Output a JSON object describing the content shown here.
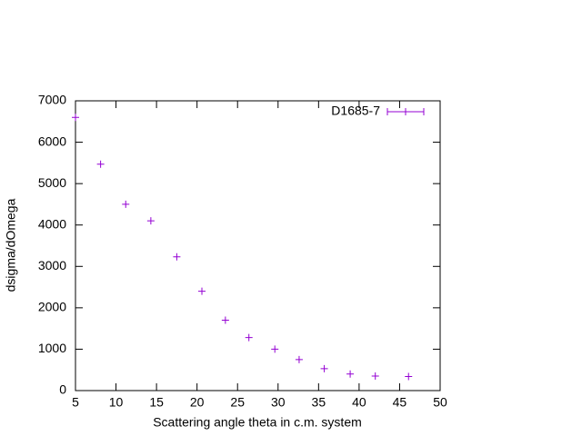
{
  "chart_data": {
    "type": "scatter",
    "xlabel": "Scattering angle theta in c.m. system",
    "ylabel": "dsigma/dOmega",
    "series": [
      {
        "name": "D1685-7",
        "color": "#9400d3",
        "x": [
          5,
          8.1,
          11.2,
          14.3,
          17.5,
          20.6,
          23.5,
          26.4,
          29.6,
          32.6,
          35.7,
          38.9,
          42.0,
          46.1
        ],
        "values": [
          6600,
          5470,
          4500,
          4100,
          3230,
          2400,
          1700,
          1280,
          1000,
          750,
          530,
          400,
          350,
          340
        ]
      }
    ],
    "xlim": [
      5,
      50
    ],
    "xticks": [
      5,
      10,
      15,
      20,
      25,
      30,
      35,
      40,
      45,
      50
    ],
    "ylim": [
      0,
      7000
    ],
    "yticks": [
      0,
      1000,
      2000,
      3000,
      4000,
      5000,
      6000,
      7000
    ],
    "legend": "top-right"
  }
}
